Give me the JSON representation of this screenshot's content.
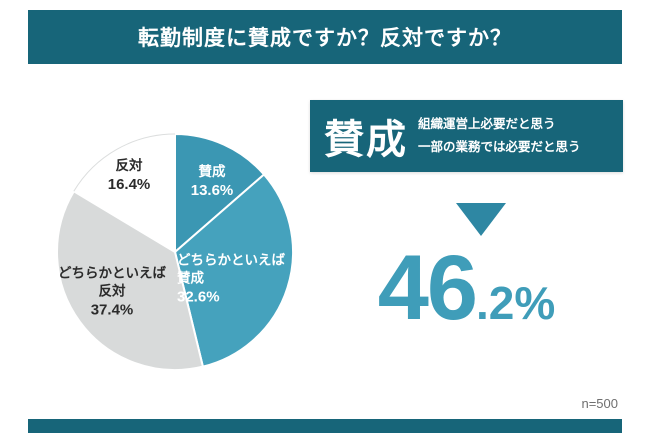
{
  "header": {
    "title": "転勤制度に賛成ですか？反対ですか？"
  },
  "chart_data": {
    "type": "pie",
    "title": "転勤制度に賛成ですか？反対ですか？",
    "direction": "clockwise",
    "start_angle_deg": 0,
    "unit": "%",
    "sample_label": "n=500",
    "segments": [
      {
        "label": "賛成",
        "value": 13.6,
        "pct": "13.6%",
        "color": "#3b97b3",
        "text_color": "#ffffff"
      },
      {
        "label": "どちらかといえば賛成",
        "value": 32.6,
        "pct": "32.6%",
        "color": "#45a2bd",
        "text_color": "#ffffff"
      },
      {
        "label": "どちらかといえば反対",
        "value": 37.4,
        "pct": "37.4%",
        "color": "#d8dada",
        "text_color": "#2b2b2b"
      },
      {
        "label": "反対",
        "value": 16.4,
        "pct": "16.4%",
        "color": "#ffffff",
        "text_color": "#2b2b2b"
      }
    ]
  },
  "callout": {
    "keyword": "賛成",
    "reasons": [
      "組織運営上必要だと思う",
      "一部の業務では必要だと思う"
    ],
    "value_int": "46",
    "value_frac": ".2%"
  },
  "footer": {
    "sample_size": "n=500"
  },
  "colors": {
    "header_bg": "#176579",
    "accent_teal": "#3f9db9",
    "arrow_teal": "#2e87a3",
    "gray_slice": "#d8dada"
  }
}
